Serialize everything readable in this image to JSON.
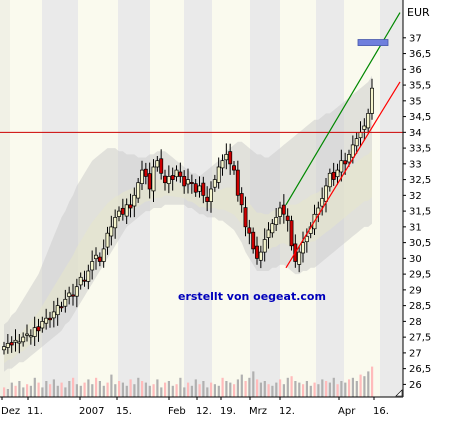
{
  "chart_data": {
    "type": "candlestick",
    "currency": "EUR",
    "credit": "erstellt von oegeat.com",
    "ylim": [
      25.6,
      38.2
    ],
    "y_ticks": [
      "26",
      "26,5",
      "27",
      "27,5",
      "28",
      "28,5",
      "29",
      "29,5",
      "30",
      "30,5",
      "31",
      "31,5",
      "32",
      "32,5",
      "33",
      "33,5",
      "34",
      "34,5",
      "35",
      "35,5",
      "36",
      "36,5",
      "37"
    ],
    "x_labels": [
      "Dez",
      "11.",
      "2007",
      "15.",
      "Feb",
      "12.",
      "19.",
      "Mrz",
      "12.",
      "Apr",
      "16."
    ],
    "reference_line": 34.0,
    "prices": [
      27.2,
      27.3,
      27.25,
      27.4,
      27.35,
      27.5,
      27.6,
      27.55,
      27.8,
      27.7,
      28.0,
      28.1,
      28.05,
      28.3,
      28.5,
      28.45,
      28.7,
      28.9,
      28.8,
      29.1,
      29.4,
      29.3,
      29.6,
      29.9,
      30.1,
      29.9,
      30.3,
      30.8,
      31.0,
      31.3,
      31.5,
      31.4,
      31.7,
      31.6,
      32.0,
      32.4,
      32.8,
      32.6,
      32.2,
      32.9,
      33.1,
      32.7,
      32.4,
      32.6,
      32.5,
      32.8,
      32.6,
      32.3,
      32.5,
      32.4,
      32.1,
      32.3,
      32.0,
      31.8,
      32.2,
      32.5,
      32.9,
      33.1,
      33.3,
      33.0,
      32.8,
      32.0,
      31.7,
      31.0,
      30.8,
      30.3,
      30.0,
      30.2,
      30.6,
      30.9,
      31.1,
      31.3,
      31.6,
      31.4,
      31.2,
      30.4,
      29.9,
      30.2,
      30.5,
      30.7,
      31.0,
      31.4,
      31.6,
      31.9,
      32.3,
      32.7,
      32.5,
      32.8,
      33.1,
      33.0,
      33.3,
      33.6,
      33.8,
      34.0,
      34.2,
      34.6,
      35.4
    ],
    "volume_relative": [
      0.3,
      0.25,
      0.45,
      0.35,
      0.5,
      0.3,
      0.4,
      0.35,
      0.6,
      0.45,
      0.3,
      0.5,
      0.4,
      0.55,
      0.35,
      0.45,
      0.3,
      0.5,
      0.6,
      0.4,
      0.35,
      0.45,
      0.55,
      0.4,
      0.6,
      0.5,
      0.35,
      0.45,
      0.7,
      0.4,
      0.5,
      0.45,
      0.35,
      0.55,
      0.4,
      0.6,
      0.5,
      0.45,
      0.35,
      0.4,
      0.55,
      0.3,
      0.45,
      0.5,
      0.35,
      0.4,
      0.6,
      0.3,
      0.45,
      0.35,
      0.55,
      0.4,
      0.5,
      0.3,
      0.45,
      0.4,
      0.35,
      0.6,
      0.5,
      0.45,
      0.4,
      0.55,
      0.7,
      0.5,
      0.6,
      0.8,
      0.55,
      0.45,
      0.5,
      0.4,
      0.35,
      0.45,
      0.55,
      0.4,
      0.6,
      0.65,
      0.5,
      0.45,
      0.4,
      0.5,
      0.35,
      0.45,
      0.4,
      0.55,
      0.5,
      0.45,
      0.6,
      0.4,
      0.5,
      0.45,
      0.55,
      0.6,
      0.5,
      0.7,
      0.65,
      0.8,
      0.95
    ],
    "upper_band": [
      27.9,
      28.0,
      28.2,
      28.3,
      28.5,
      28.7,
      28.9,
      29.1,
      29.3,
      29.5,
      29.8,
      30.1,
      30.4,
      30.7,
      31.0,
      31.3,
      31.5,
      31.8,
      32.0,
      32.3,
      32.5,
      32.7,
      32.9,
      33.1,
      33.2,
      33.3,
      33.4,
      33.5,
      33.5,
      33.5,
      33.4,
      33.4,
      33.3,
      33.3,
      33.3,
      33.2,
      33.2,
      33.2,
      33.3,
      33.3,
      33.4,
      33.4,
      33.4,
      33.3,
      33.2,
      33.1,
      33.0,
      32.9,
      32.8,
      32.7,
      32.7,
      32.6,
      32.7,
      32.8,
      32.9,
      33.0,
      33.1,
      33.2,
      33.4,
      33.5,
      33.6,
      33.7,
      33.7,
      33.6,
      33.5,
      33.4,
      33.3,
      33.3,
      33.2,
      33.2,
      33.3,
      33.4,
      33.5,
      33.6,
      33.7,
      33.8,
      33.9,
      34.0,
      34.1,
      34.2,
      34.3,
      34.4,
      34.4,
      34.5,
      34.6,
      34.6,
      34.7,
      34.8,
      34.9,
      35.0,
      35.1,
      35.2,
      35.3,
      35.4,
      35.5,
      35.6,
      35.8
    ],
    "lower_band": [
      26.4,
      26.5,
      26.5,
      26.6,
      26.7,
      26.7,
      26.8,
      26.9,
      27.0,
      27.1,
      27.2,
      27.3,
      27.4,
      27.5,
      27.6,
      27.7,
      27.9,
      28.0,
      28.2,
      28.4,
      28.6,
      28.8,
      29.0,
      29.2,
      29.4,
      29.6,
      29.8,
      30.0,
      30.2,
      30.4,
      30.6,
      30.8,
      31.0,
      31.1,
      31.2,
      31.3,
      31.4,
      31.5,
      31.5,
      31.6,
      31.6,
      31.6,
      31.7,
      31.7,
      31.7,
      31.7,
      31.7,
      31.7,
      31.6,
      31.6,
      31.5,
      31.4,
      31.4,
      31.3,
      31.3,
      31.3,
      31.2,
      31.2,
      31.1,
      31.0,
      30.9,
      30.7,
      30.5,
      30.2,
      30.0,
      29.8,
      29.6,
      29.6,
      29.6,
      29.6,
      29.7,
      29.7,
      29.8,
      29.8,
      29.7,
      29.6,
      29.5,
      29.5,
      29.6,
      29.6,
      29.7,
      29.7,
      29.8,
      29.9,
      30.0,
      30.1,
      30.2,
      30.3,
      30.4,
      30.5,
      30.6,
      30.7,
      30.8,
      30.9,
      31.0,
      31.0,
      31.1
    ],
    "upward_channel": {
      "start": 29.7,
      "end": 35.6
    },
    "green_trend": {
      "start": 31.7,
      "end": 37.8
    },
    "marker_level": 36.85
  },
  "colors": {
    "background": "#fafaee",
    "stripe_light": "#eaeae0",
    "stripe_dark": "#dcdce8",
    "band_fill": "#cccccc",
    "band_mid": "#e6e6cc",
    "up_candle": "#f4f4cc",
    "down_candle": "#cc0000",
    "wick": "#000000",
    "reference_line": "#cc0000",
    "channel_line": "#ff0000",
    "trend_line": "#008800",
    "marker": "#6f7fdd",
    "volume": "#b0b0b0",
    "volume_up": "#ffbbbb"
  }
}
